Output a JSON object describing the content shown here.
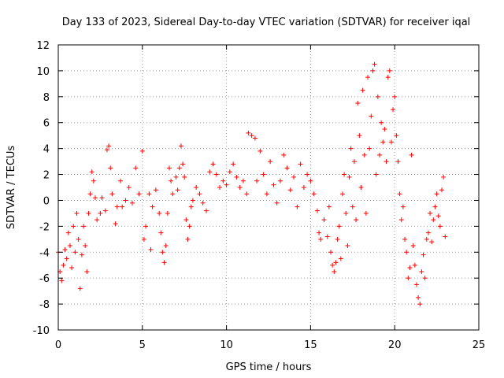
{
  "chart_data": {
    "type": "scatter",
    "title": "Day 133 of 2023, Sidereal Day-to-day VTEC variation (SDTVAR) for receiver iqal",
    "xlabel": "GPS time / hours",
    "ylabel": "SDTVAR / TECUs",
    "xlim": [
      0,
      25
    ],
    "ylim": [
      -10,
      12
    ],
    "xticks": [
      0,
      5,
      10,
      15,
      20,
      25
    ],
    "yticks": [
      -10,
      -8,
      -6,
      -4,
      -2,
      0,
      2,
      4,
      6,
      8,
      10,
      12
    ],
    "grid": true,
    "marker": "+",
    "color": "#ff0000",
    "series": [
      {
        "name": "SDTVAR",
        "points": [
          [
            0.0,
            -4.0
          ],
          [
            0.1,
            -5.5
          ],
          [
            0.2,
            -6.2
          ],
          [
            0.3,
            -5.0
          ],
          [
            0.4,
            -3.8
          ],
          [
            0.5,
            -4.5
          ],
          [
            0.6,
            -2.5
          ],
          [
            0.7,
            -3.5
          ],
          [
            0.8,
            -5.2
          ],
          [
            0.9,
            -2.0
          ],
          [
            1.0,
            -4.0
          ],
          [
            1.1,
            -1.0
          ],
          [
            1.2,
            -3.0
          ],
          [
            1.3,
            -6.8
          ],
          [
            1.4,
            -4.2
          ],
          [
            1.5,
            -2.0
          ],
          [
            1.6,
            -3.5
          ],
          [
            1.7,
            -5.5
          ],
          [
            1.8,
            -1.0
          ],
          [
            1.9,
            0.5
          ],
          [
            2.0,
            2.2
          ],
          [
            2.1,
            1.5
          ],
          [
            2.2,
            0.2
          ],
          [
            2.3,
            -1.5
          ],
          [
            2.5,
            -1.0
          ],
          [
            2.6,
            0.2
          ],
          [
            2.8,
            -0.8
          ],
          [
            2.9,
            3.9
          ],
          [
            3.0,
            4.2
          ],
          [
            3.1,
            2.5
          ],
          [
            3.2,
            0.5
          ],
          [
            3.4,
            -1.8
          ],
          [
            3.5,
            -0.5
          ],
          [
            3.7,
            1.5
          ],
          [
            3.8,
            -0.5
          ],
          [
            4.0,
            0.0
          ],
          [
            4.2,
            1.0
          ],
          [
            4.4,
            -0.2
          ],
          [
            4.6,
            2.5
          ],
          [
            4.8,
            0.5
          ],
          [
            5.0,
            3.8
          ],
          [
            5.1,
            -3.0
          ],
          [
            5.2,
            -2.0
          ],
          [
            5.4,
            0.5
          ],
          [
            5.5,
            -3.8
          ],
          [
            5.6,
            -0.5
          ],
          [
            5.8,
            0.8
          ],
          [
            6.0,
            -1.0
          ],
          [
            6.1,
            -2.5
          ],
          [
            6.2,
            -4.0
          ],
          [
            6.3,
            -4.8
          ],
          [
            6.4,
            -3.5
          ],
          [
            6.5,
            -1.0
          ],
          [
            6.6,
            2.5
          ],
          [
            6.7,
            1.5
          ],
          [
            6.8,
            0.5
          ],
          [
            7.0,
            1.8
          ],
          [
            7.1,
            0.8
          ],
          [
            7.2,
            2.5
          ],
          [
            7.3,
            4.2
          ],
          [
            7.4,
            2.8
          ],
          [
            7.5,
            1.8
          ],
          [
            7.6,
            -1.5
          ],
          [
            7.7,
            -3.0
          ],
          [
            7.8,
            -2.0
          ],
          [
            7.9,
            -0.5
          ],
          [
            8.0,
            0.0
          ],
          [
            8.2,
            1.0
          ],
          [
            8.4,
            0.5
          ],
          [
            8.6,
            -0.2
          ],
          [
            8.8,
            -0.8
          ],
          [
            9.0,
            2.2
          ],
          [
            9.2,
            2.8
          ],
          [
            9.4,
            2.0
          ],
          [
            9.6,
            1.0
          ],
          [
            9.8,
            1.5
          ],
          [
            10.0,
            1.2
          ],
          [
            10.2,
            2.2
          ],
          [
            10.4,
            2.8
          ],
          [
            10.6,
            1.8
          ],
          [
            10.8,
            1.0
          ],
          [
            11.0,
            1.5
          ],
          [
            11.2,
            0.5
          ],
          [
            11.3,
            5.2
          ],
          [
            11.5,
            5.0
          ],
          [
            11.7,
            4.8
          ],
          [
            11.8,
            1.5
          ],
          [
            12.0,
            3.8
          ],
          [
            12.2,
            2.0
          ],
          [
            12.4,
            0.5
          ],
          [
            12.6,
            3.0
          ],
          [
            12.8,
            1.2
          ],
          [
            13.0,
            -0.2
          ],
          [
            13.2,
            1.5
          ],
          [
            13.4,
            3.5
          ],
          [
            13.6,
            2.5
          ],
          [
            13.8,
            0.8
          ],
          [
            14.0,
            1.8
          ],
          [
            14.2,
            -0.5
          ],
          [
            14.4,
            2.8
          ],
          [
            14.6,
            1.0
          ],
          [
            14.8,
            2.0
          ],
          [
            15.0,
            1.5
          ],
          [
            15.2,
            0.5
          ],
          [
            15.4,
            -0.8
          ],
          [
            15.5,
            -2.5
          ],
          [
            15.6,
            -3.0
          ],
          [
            15.8,
            -1.5
          ],
          [
            16.0,
            -2.8
          ],
          [
            16.1,
            -0.5
          ],
          [
            16.2,
            -4.0
          ],
          [
            16.3,
            -5.0
          ],
          [
            16.4,
            -5.5
          ],
          [
            16.5,
            -4.8
          ],
          [
            16.6,
            -3.0
          ],
          [
            16.7,
            -2.0
          ],
          [
            16.8,
            -4.5
          ],
          [
            16.9,
            0.5
          ],
          [
            17.0,
            2.0
          ],
          [
            17.1,
            -1.0
          ],
          [
            17.2,
            -3.5
          ],
          [
            17.3,
            1.8
          ],
          [
            17.4,
            4.0
          ],
          [
            17.5,
            -0.5
          ],
          [
            17.6,
            3.0
          ],
          [
            17.7,
            -1.5
          ],
          [
            17.8,
            7.5
          ],
          [
            17.9,
            5.0
          ],
          [
            18.0,
            1.0
          ],
          [
            18.1,
            8.5
          ],
          [
            18.2,
            3.5
          ],
          [
            18.3,
            -1.0
          ],
          [
            18.4,
            9.5
          ],
          [
            18.5,
            4.0
          ],
          [
            18.6,
            6.5
          ],
          [
            18.7,
            10.0
          ],
          [
            18.8,
            10.5
          ],
          [
            18.9,
            2.0
          ],
          [
            19.0,
            8.0
          ],
          [
            19.1,
            3.5
          ],
          [
            19.2,
            6.0
          ],
          [
            19.3,
            4.5
          ],
          [
            19.4,
            5.5
          ],
          [
            19.5,
            3.0
          ],
          [
            19.6,
            9.5
          ],
          [
            19.7,
            10.0
          ],
          [
            19.8,
            4.5
          ],
          [
            19.9,
            7.0
          ],
          [
            20.0,
            8.0
          ],
          [
            20.1,
            5.0
          ],
          [
            20.2,
            3.0
          ],
          [
            20.3,
            0.5
          ],
          [
            20.4,
            -1.5
          ],
          [
            20.5,
            -0.5
          ],
          [
            20.6,
            -3.0
          ],
          [
            20.7,
            -4.0
          ],
          [
            20.8,
            -6.0
          ],
          [
            20.9,
            -5.2
          ],
          [
            21.0,
            3.5
          ],
          [
            21.1,
            -3.5
          ],
          [
            21.2,
            -5.0
          ],
          [
            21.3,
            -6.5
          ],
          [
            21.4,
            -7.5
          ],
          [
            21.5,
            -8.0
          ],
          [
            21.6,
            -5.5
          ],
          [
            21.7,
            -4.2
          ],
          [
            21.8,
            -6.0
          ],
          [
            21.9,
            -3.0
          ],
          [
            22.0,
            -2.5
          ],
          [
            22.1,
            -1.0
          ],
          [
            22.2,
            -3.2
          ],
          [
            22.3,
            -1.5
          ],
          [
            22.4,
            -0.5
          ],
          [
            22.5,
            0.5
          ],
          [
            22.6,
            -1.2
          ],
          [
            22.7,
            -2.0
          ],
          [
            22.8,
            0.8
          ],
          [
            22.9,
            1.8
          ],
          [
            23.0,
            -2.8
          ]
        ]
      }
    ]
  }
}
